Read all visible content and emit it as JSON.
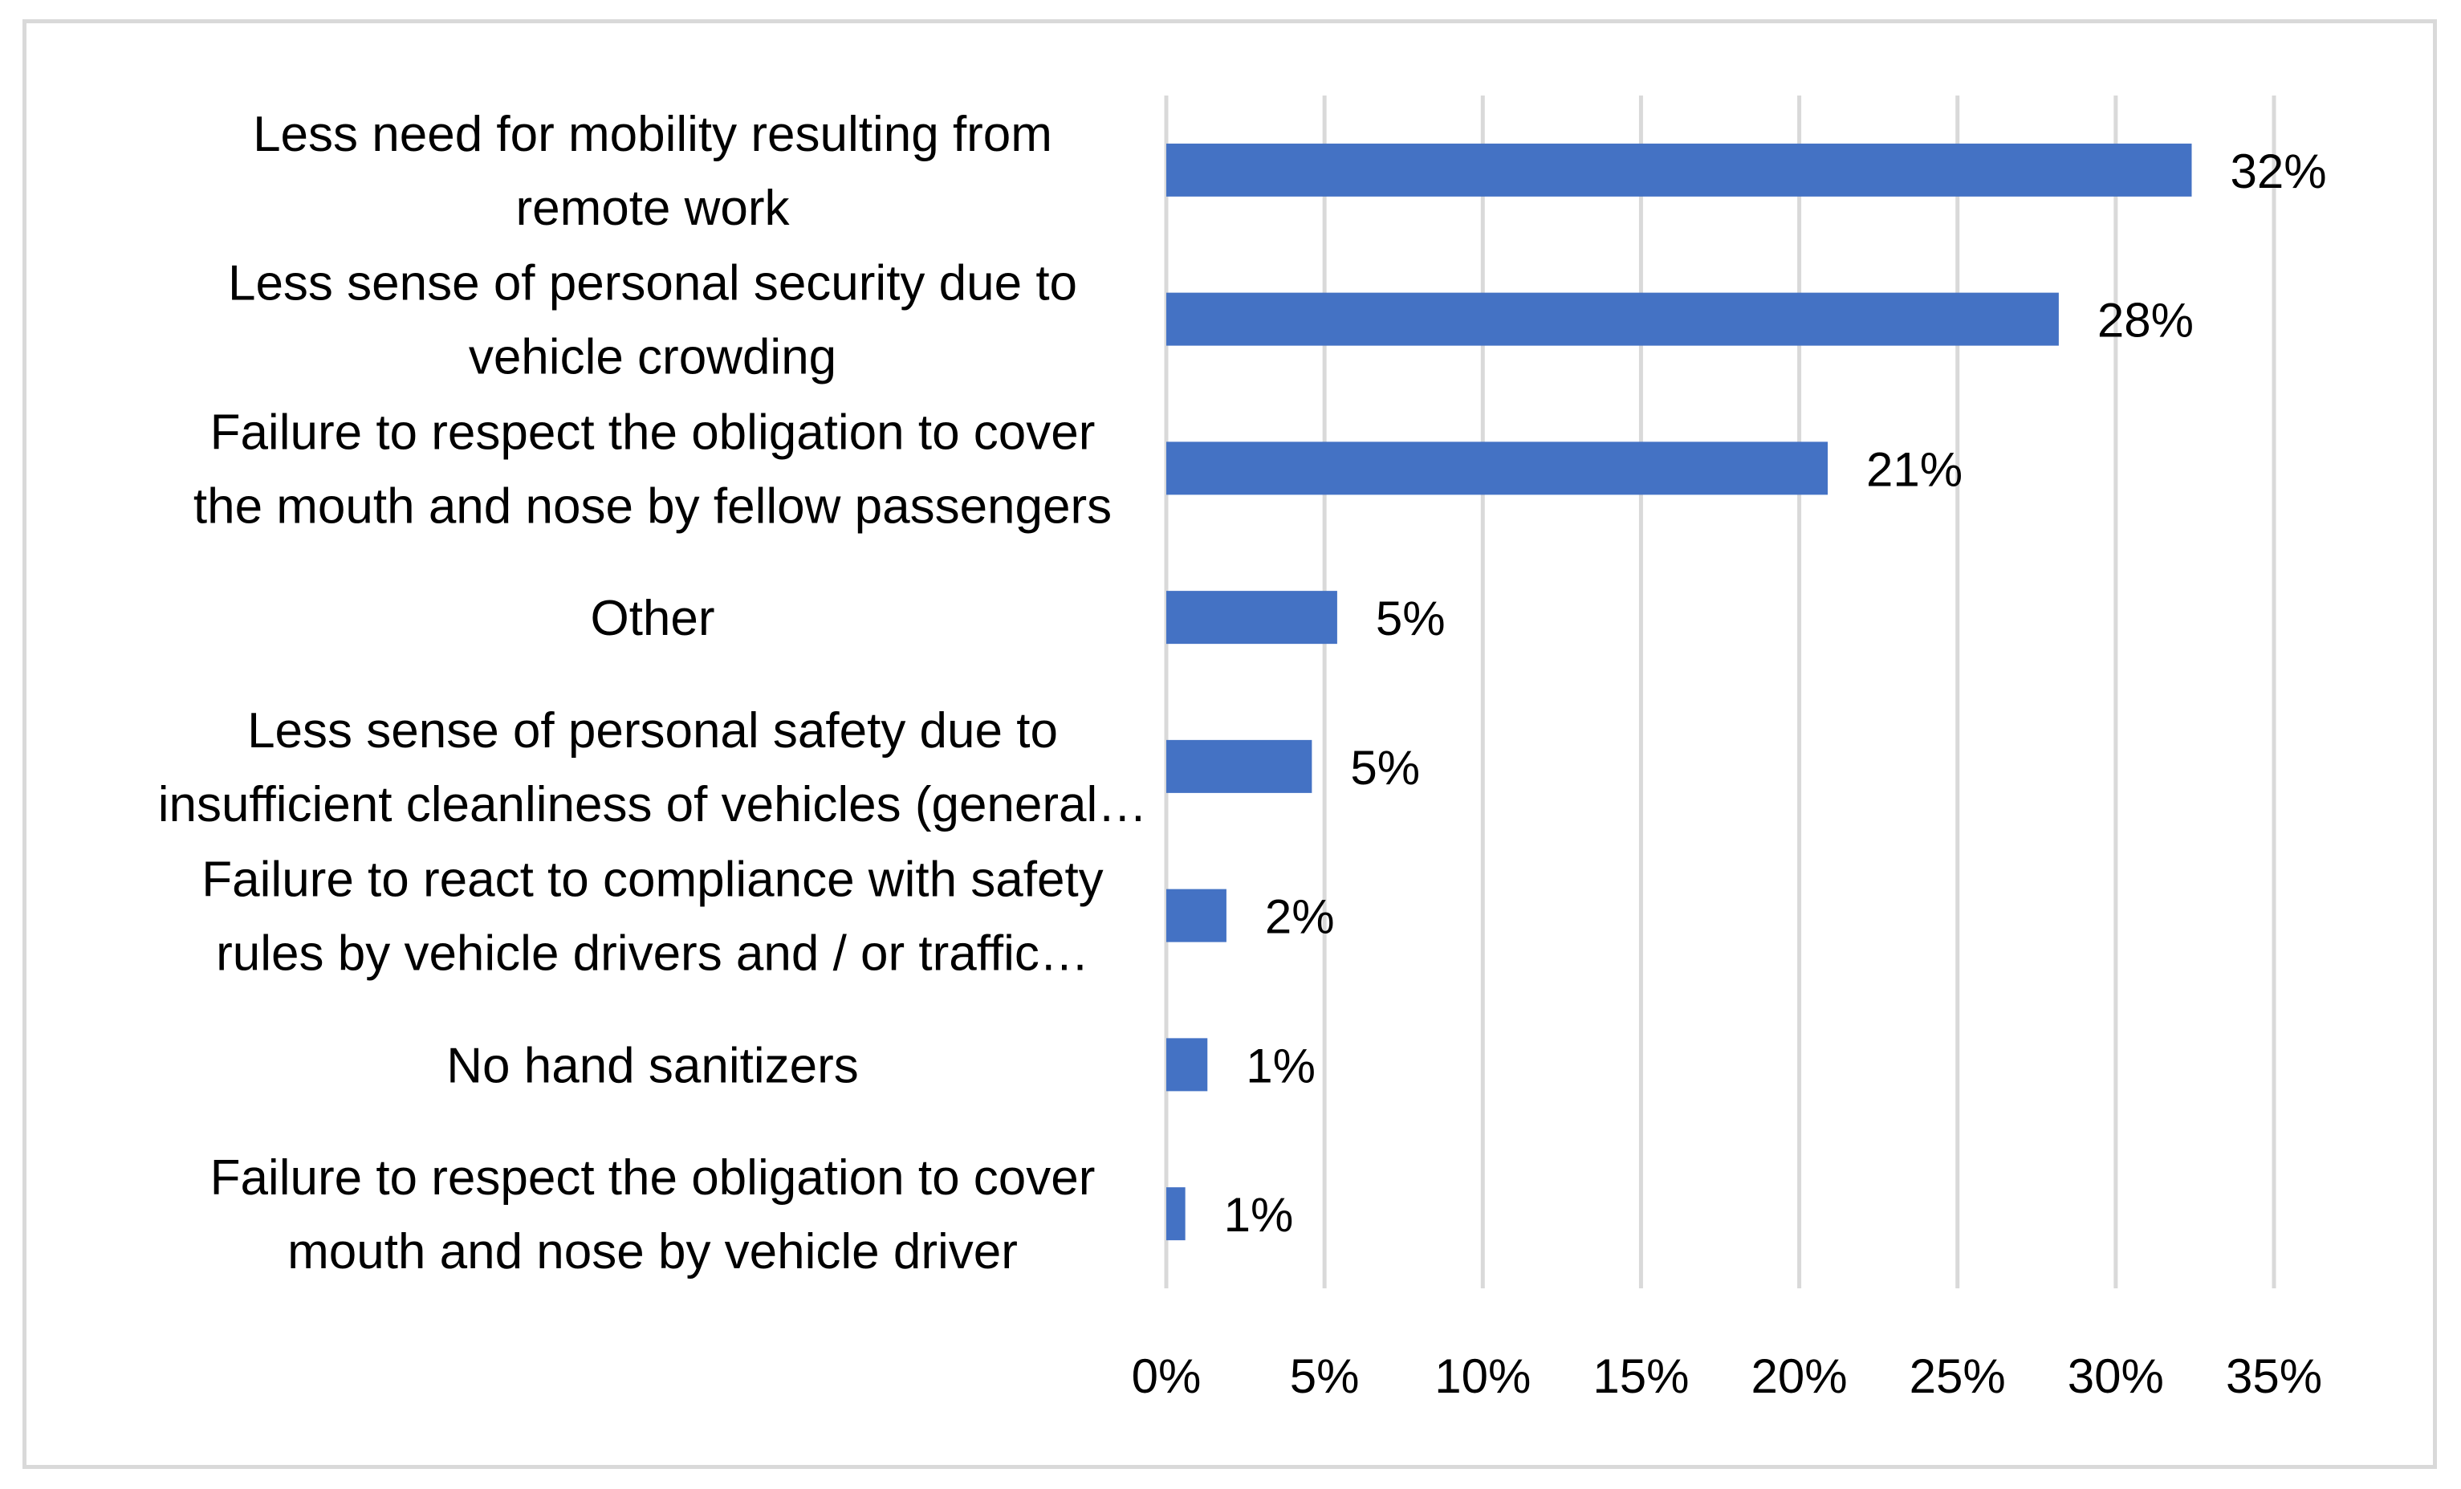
{
  "chart_data": {
    "type": "bar",
    "orientation": "horizontal",
    "title": "",
    "xlabel": "",
    "ylabel": "",
    "xlim": [
      0,
      35
    ],
    "grid": true,
    "bar_color": "#4472c4",
    "grid_color": "#d9d9d9",
    "categories": [
      [
        "Less need for mobility resulting from",
        "remote work"
      ],
      [
        "Less sense of personal security due to",
        "vehicle crowding"
      ],
      [
        "Failure to respect the obligation to cover",
        "the mouth and nose by fellow passengers"
      ],
      [
        "Other"
      ],
      [
        "Less sense of personal safety due to",
        "insufficient cleanliness of vehicles (general…"
      ],
      [
        "Failure to react to compliance with safety",
        "rules by vehicle drivers and / or traffic…"
      ],
      [
        "No hand sanitizers"
      ],
      [
        "Failure to respect the obligation to cover",
        "mouth and nose by vehicle driver"
      ]
    ],
    "values": [
      32.4,
      28.2,
      20.9,
      5.4,
      4.6,
      1.9,
      1.3,
      0.6
    ],
    "data_labels": [
      "32%",
      "28%",
      "21%",
      "5%",
      "5%",
      "2%",
      "1%",
      "1%"
    ],
    "ticks": [
      0,
      5,
      10,
      15,
      20,
      25,
      30,
      35
    ],
    "tick_labels": [
      "0%",
      "5%",
      "10%",
      "15%",
      "20%",
      "25%",
      "30%",
      "35%"
    ]
  }
}
